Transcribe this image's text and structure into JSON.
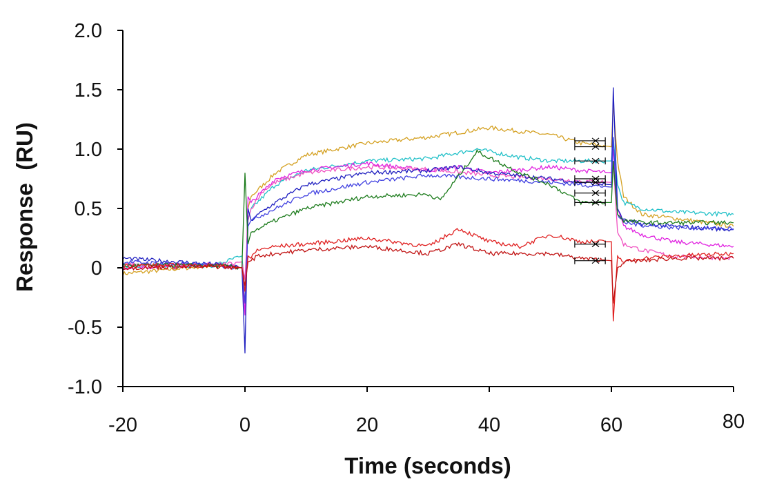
{
  "chart_data": {
    "type": "line",
    "title": "",
    "xlabel": "Time (seconds)",
    "ylabel": "Response  (RU)",
    "xlim": [
      -20,
      80
    ],
    "ylim": [
      -1.0,
      2.0
    ],
    "x_ticks": [
      -20,
      0,
      20,
      40,
      60,
      80
    ],
    "x_tick_labels": [
      "-20",
      "0",
      "20",
      "40",
      "60",
      "80"
    ],
    "y_ticks": [
      2.0,
      1.5,
      1.0,
      0.5,
      0,
      -0.5,
      -1.0
    ],
    "y_tick_labels": [
      "2.0",
      "1.5",
      "1.0",
      "0.5",
      "0",
      "-0.5",
      "-1.0"
    ],
    "grid": false,
    "legend": "none",
    "series": [
      {
        "color": "#d4a020",
        "x": [
          -20,
          -5,
          -0.5,
          0,
          0.5,
          1,
          3,
          5,
          10,
          20,
          30,
          40,
          50,
          55,
          60,
          60.3,
          61,
          62,
          65,
          70,
          80
        ],
        "y": [
          -0.05,
          0.02,
          0,
          -0.3,
          0.5,
          0.6,
          0.7,
          0.8,
          0.95,
          1.05,
          1.1,
          1.18,
          1.12,
          1.05,
          1.02,
          1.38,
          0.9,
          0.6,
          0.45,
          0.42,
          0.35
        ]
      },
      {
        "color": "#20c0c8",
        "x": [
          -20,
          -5,
          -0.5,
          0,
          0.5,
          1,
          3,
          5,
          10,
          20,
          30,
          38,
          45,
          50,
          55,
          60,
          60.3,
          61,
          62,
          65,
          70,
          80
        ],
        "y": [
          0.02,
          0.02,
          0.1,
          -0.2,
          0.4,
          0.5,
          0.6,
          0.7,
          0.82,
          0.9,
          0.92,
          1.0,
          0.93,
          0.9,
          0.9,
          0.9,
          1.1,
          0.7,
          0.55,
          0.5,
          0.47,
          0.45
        ]
      },
      {
        "color": "#e020e0",
        "x": [
          -20,
          -5,
          -0.5,
          0,
          0.5,
          1,
          3,
          5,
          10,
          20,
          30,
          35,
          40,
          50,
          55,
          60,
          60.3,
          61,
          62,
          65,
          70,
          80
        ],
        "y": [
          0.0,
          0.03,
          0.0,
          -0.4,
          0.6,
          0.55,
          0.65,
          0.75,
          0.82,
          0.88,
          0.82,
          0.85,
          0.8,
          0.85,
          0.82,
          0.8,
          1.0,
          0.5,
          0.35,
          0.28,
          0.22,
          0.18
        ]
      },
      {
        "color": "#f050c0",
        "x": [
          -20,
          -5,
          -0.5,
          0,
          0.5,
          1,
          3,
          5,
          10,
          20,
          30,
          40,
          50,
          55,
          60,
          60.3,
          61,
          62,
          65,
          70,
          80
        ],
        "y": [
          0.03,
          0.02,
          0.05,
          -0.1,
          0.4,
          0.5,
          0.65,
          0.72,
          0.8,
          0.85,
          0.83,
          0.78,
          0.75,
          0.73,
          0.72,
          0.9,
          0.3,
          0.2,
          0.15,
          0.1,
          0.08
        ]
      },
      {
        "color": "#2020c0",
        "x": [
          -20,
          -5,
          -0.5,
          0,
          0.5,
          1,
          3,
          5,
          10,
          20,
          30,
          35,
          40,
          50,
          55,
          60,
          60.3,
          61,
          62,
          65,
          70,
          80
        ],
        "y": [
          0.08,
          0.03,
          0.0,
          -0.72,
          0.5,
          0.4,
          0.48,
          0.55,
          0.7,
          0.8,
          0.82,
          0.85,
          0.8,
          0.75,
          0.72,
          0.7,
          1.52,
          0.5,
          0.4,
          0.37,
          0.35,
          0.32
        ]
      },
      {
        "color": "#4040e0",
        "x": [
          -20,
          -5,
          -0.5,
          0,
          0.5,
          1,
          3,
          5,
          10,
          20,
          30,
          40,
          50,
          55,
          60,
          60.3,
          61,
          62,
          65,
          70,
          80
        ],
        "y": [
          0.05,
          0.02,
          0.0,
          -0.3,
          0.35,
          0.4,
          0.45,
          0.5,
          0.62,
          0.72,
          0.78,
          0.75,
          0.72,
          0.7,
          0.68,
          1.1,
          0.45,
          0.38,
          0.36,
          0.34,
          0.33
        ]
      },
      {
        "color": "#1a7a1a",
        "x": [
          -20,
          -5,
          -0.5,
          0,
          0.5,
          1,
          3,
          5,
          10,
          20,
          30,
          32,
          38,
          45,
          50,
          55,
          60,
          60.3,
          61,
          62,
          65,
          70,
          80
        ],
        "y": [
          0.02,
          0.02,
          0.0,
          0.8,
          0.2,
          0.3,
          0.35,
          0.4,
          0.5,
          0.6,
          0.62,
          0.57,
          0.98,
          0.8,
          0.7,
          0.55,
          0.55,
          0.9,
          0.45,
          0.4,
          0.38,
          0.38,
          0.38
        ]
      },
      {
        "color": "#e02020",
        "x": [
          -20,
          -5,
          -0.5,
          0,
          0.5,
          1,
          2,
          5,
          10,
          20,
          30,
          35,
          40,
          45,
          50,
          55,
          60,
          60.3,
          61,
          62,
          65,
          70,
          80
        ],
        "y": [
          0.02,
          0.02,
          0.0,
          -0.2,
          0.1,
          0.08,
          0.15,
          0.18,
          0.2,
          0.25,
          0.18,
          0.33,
          0.22,
          0.18,
          0.28,
          0.22,
          0.22,
          -0.45,
          0.1,
          0.05,
          0.08,
          0.1,
          0.12
        ]
      },
      {
        "color": "#c01010",
        "x": [
          -20,
          -5,
          -0.5,
          0,
          0.5,
          1,
          2,
          5,
          10,
          20,
          30,
          35,
          40,
          50,
          55,
          60,
          60.3,
          61,
          62,
          65,
          70,
          80
        ],
        "y": [
          0.0,
          0.01,
          0.0,
          -0.15,
          0.05,
          0.06,
          0.1,
          0.12,
          0.15,
          0.18,
          0.12,
          0.2,
          0.12,
          0.12,
          0.08,
          0.06,
          -0.3,
          0.0,
          0.05,
          0.06,
          0.08,
          0.08
        ]
      }
    ],
    "fits": {
      "color": "#000000",
      "x_range": [
        54,
        59
      ],
      "levels": [
        1.07,
        1.02,
        0.9,
        0.75,
        0.72,
        0.63,
        0.55,
        0.2,
        0.06
      ]
    }
  }
}
